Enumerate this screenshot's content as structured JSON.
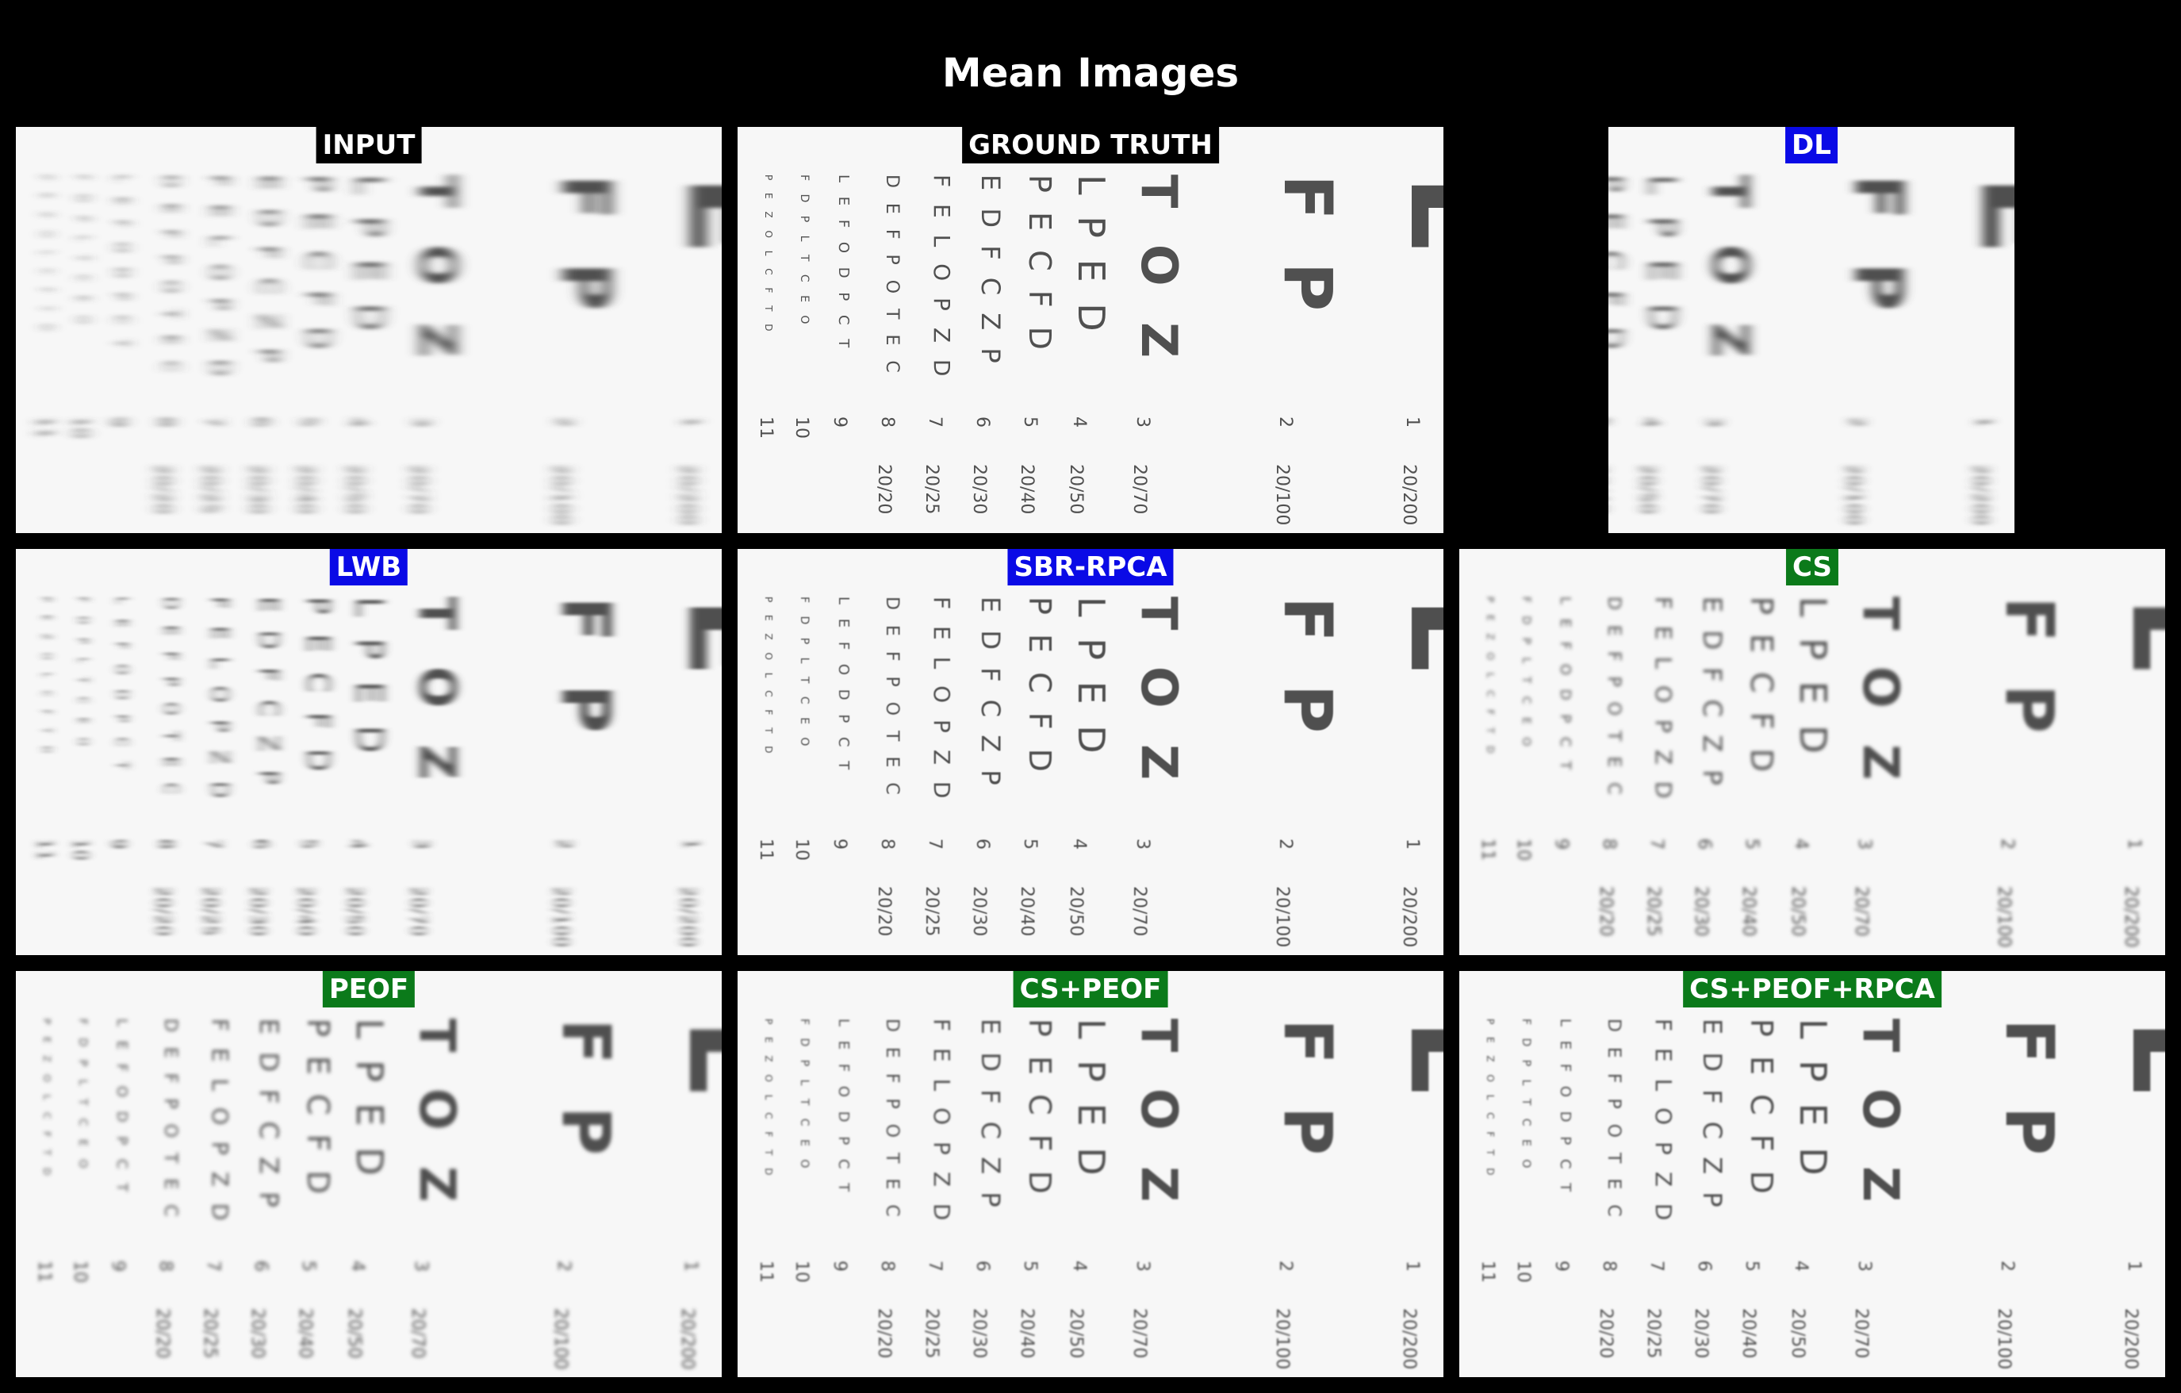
{
  "figure": {
    "title": "Mean Images"
  },
  "panels": [
    {
      "label": "INPUT",
      "label_color": "black",
      "blur": 6,
      "skew": true
    },
    {
      "label": "GROUND TRUTH",
      "label_color": "black",
      "blur": 0,
      "skew": false
    },
    {
      "label": "DL",
      "label_color": "blue",
      "blur": 5,
      "skew": true
    },
    {
      "label": "LWB",
      "label_color": "blue",
      "blur": 4,
      "skew": true
    },
    {
      "label": "SBR-RPCA",
      "label_color": "blue",
      "blur": 0.6,
      "skew": false
    },
    {
      "label": "CS",
      "label_color": "green",
      "blur": 2,
      "skew": false
    },
    {
      "label": "PEOF",
      "label_color": "green",
      "blur": 2.5,
      "skew": false
    },
    {
      "label": "CS+PEOF",
      "label_color": "green",
      "blur": 1,
      "skew": false
    },
    {
      "label": "CS+PEOF+RPCA",
      "label_color": "green",
      "blur": 1,
      "skew": false
    }
  ],
  "eye_chart": {
    "letter_columns": [
      "E",
      "F P",
      "T O Z",
      "L P E D",
      "P E C F D",
      "E D F C Z P",
      "F E L O P Z D",
      "D E F P O T E C",
      "L E F O D P C T",
      "F D P L T C E O",
      "P E Z O L C F T D"
    ],
    "line_numbers": [
      "1",
      "2",
      "3",
      "4",
      "5",
      "6",
      "7",
      "8",
      "9",
      "10",
      "11"
    ],
    "acuity_labels": [
      "20/200",
      "20/100",
      "20/70",
      "20/50",
      "20/40",
      "20/30",
      "20/25",
      "20/20"
    ]
  },
  "colors": {
    "background": "#000000",
    "label_black": "#000000",
    "label_blue": "#0a0ae6",
    "label_green": "#0b7a1a",
    "chart_ink": "#505050"
  }
}
